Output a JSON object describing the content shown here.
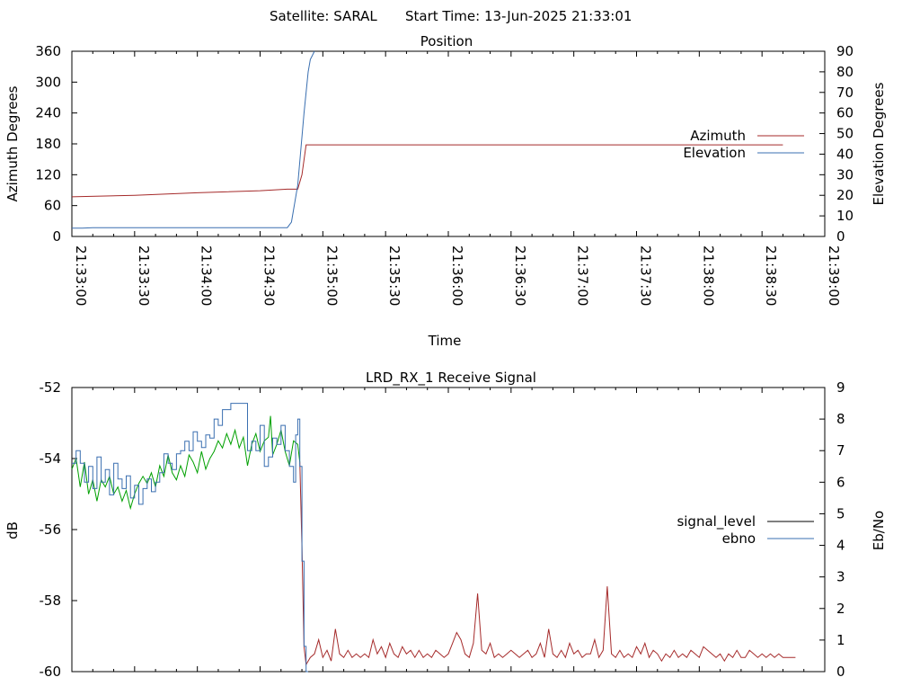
{
  "header": {
    "satellite_label": "Satellite: SARAL",
    "start_label": "Start Time: 13-Jun-2025 21:33:01"
  },
  "chart_data": [
    {
      "type": "line",
      "title": "Position",
      "xlabel": "Time",
      "ylabel": "Azimuth Degrees",
      "y2label": "Elevation Degrees",
      "xlim_seconds": [
        0,
        360
      ],
      "x_ticks": [
        "21:33:00",
        "21:33:30",
        "21:34:00",
        "21:34:30",
        "21:35:00",
        "21:35:30",
        "21:36:00",
        "21:36:30",
        "21:37:00",
        "21:37:30",
        "21:38:00",
        "21:38:30",
        "21:39:00"
      ],
      "ylim": [
        0,
        360
      ],
      "y_ticks": [
        "0",
        "60",
        "120",
        "180",
        "240",
        "300",
        "360"
      ],
      "y2lim": [
        0,
        90
      ],
      "y2_ticks": [
        "0",
        "10",
        "20",
        "30",
        "40",
        "50",
        "60",
        "70",
        "80",
        "90"
      ],
      "legend_position": "right",
      "series": [
        {
          "name": "Azimuth",
          "axis": "left",
          "color": "#a52a2a",
          "x": [
            0,
            30,
            60,
            90,
            103,
            108,
            110,
            112,
            120,
            200,
            340
          ],
          "y": [
            77,
            80,
            85,
            89,
            92,
            92,
            120,
            178,
            178,
            178,
            178
          ]
        },
        {
          "name": "Elevation",
          "axis": "right",
          "color": "#3a6fb0",
          "x": [
            0,
            5,
            10,
            60,
            90,
            103,
            105,
            108,
            111,
            113,
            114,
            115,
            116
          ],
          "y": [
            4,
            4,
            4.3,
            4.3,
            4.3,
            4.3,
            7,
            25,
            60,
            80,
            86,
            88,
            90
          ]
        }
      ]
    },
    {
      "type": "line",
      "title": "LRD_RX_1 Receive Signal",
      "ylabel": "dB",
      "y2label": "Eb/No",
      "xlim_seconds": [
        0,
        360
      ],
      "ylim": [
        -60,
        -52
      ],
      "y_ticks": [
        "-60",
        "-58",
        "-56",
        "-54",
        "-52"
      ],
      "y2lim": [
        0,
        9
      ],
      "y2_ticks": [
        "0",
        "1",
        "2",
        "3",
        "4",
        "5",
        "6",
        "7",
        "8",
        "9"
      ],
      "legend_position": "right",
      "series": [
        {
          "name": "signal_level",
          "axis": "left",
          "color": "#000000",
          "segments": [
            {
              "color": "#00a000",
              "x": [
                0,
                2,
                4,
                6,
                8,
                10,
                12,
                14,
                16,
                18,
                20,
                22,
                24,
                26,
                28,
                30,
                32,
                34,
                36,
                38,
                40,
                42,
                44,
                46,
                48,
                50,
                52,
                54,
                56,
                58,
                60,
                62,
                64,
                66,
                68,
                70,
                72,
                74,
                76,
                78,
                80,
                82,
                84,
                86,
                88,
                90,
                92,
                94,
                95,
                96,
                98,
                100,
                102,
                104,
                106,
                108,
                109
              ],
              "y": [
                -54.3,
                -54.0,
                -54.8,
                -54.1,
                -55.0,
                -54.6,
                -55.2,
                -54.6,
                -54.8,
                -54.5,
                -55.0,
                -54.8,
                -55.2,
                -54.9,
                -55.4,
                -55.0,
                -54.7,
                -54.5,
                -54.7,
                -54.4,
                -54.8,
                -54.2,
                -54.5,
                -53.9,
                -54.4,
                -54.6,
                -54.2,
                -54.5,
                -53.9,
                -54.1,
                -54.4,
                -53.8,
                -54.3,
                -54.0,
                -53.8,
                -53.5,
                -53.7,
                -53.3,
                -53.6,
                -53.2,
                -53.7,
                -53.4,
                -54.2,
                -53.6,
                -53.3,
                -53.8,
                -53.5,
                -53.4,
                -52.8,
                -53.9,
                -53.6,
                -53.2,
                -53.8,
                -54.2,
                -53.5,
                -53.6,
                -54.1
              ]
            },
            {
              "color": "#a52a2a",
              "x": [
                109,
                110,
                111,
                112,
                114,
                116,
                118,
                120,
                122,
                124,
                126,
                128,
                130,
                132,
                134,
                136,
                138,
                140,
                142,
                144,
                146,
                148,
                150,
                152,
                154,
                156,
                158,
                160,
                162,
                164,
                166,
                168,
                170,
                172,
                174,
                176,
                178,
                180,
                182,
                184,
                186,
                188,
                190,
                192,
                194,
                196,
                198,
                200,
                202,
                204,
                206,
                208,
                210,
                212,
                214,
                216,
                218,
                220,
                222,
                224,
                226,
                228,
                230,
                232,
                234,
                236,
                238,
                240,
                242,
                244,
                246,
                248,
                250,
                252,
                254,
                256,
                258,
                260,
                262,
                264,
                266,
                268,
                270,
                272,
                274,
                276,
                278,
                280,
                282,
                284,
                286,
                288,
                290,
                292,
                294,
                296,
                298,
                300,
                302,
                304,
                306,
                308,
                310,
                312,
                314,
                316,
                318,
                320,
                322,
                324,
                326,
                328,
                330,
                332,
                334,
                336,
                338,
                340,
                342,
                344,
                346
              ],
              "y": [
                -54.1,
                -56.5,
                -59.3,
                -59.8,
                -59.6,
                -59.5,
                -59.1,
                -59.6,
                -59.4,
                -59.7,
                -58.8,
                -59.5,
                -59.6,
                -59.4,
                -59.6,
                -59.5,
                -59.6,
                -59.5,
                -59.6,
                -59.1,
                -59.5,
                -59.3,
                -59.6,
                -59.2,
                -59.5,
                -59.6,
                -59.3,
                -59.5,
                -59.4,
                -59.6,
                -59.4,
                -59.6,
                -59.5,
                -59.6,
                -59.4,
                -59.5,
                -59.6,
                -59.5,
                -59.2,
                -58.9,
                -59.1,
                -59.5,
                -59.6,
                -59.2,
                -57.8,
                -59.4,
                -59.5,
                -59.2,
                -59.6,
                -59.5,
                -59.6,
                -59.5,
                -59.4,
                -59.5,
                -59.6,
                -59.5,
                -59.4,
                -59.6,
                -59.5,
                -59.2,
                -59.6,
                -58.8,
                -59.5,
                -59.6,
                -59.4,
                -59.6,
                -59.2,
                -59.5,
                -59.4,
                -59.6,
                -59.5,
                -59.5,
                -59.1,
                -59.6,
                -59.4,
                -57.6,
                -59.5,
                -59.6,
                -59.4,
                -59.6,
                -59.5,
                -59.6,
                -59.3,
                -59.5,
                -59.2,
                -59.6,
                -59.4,
                -59.5,
                -59.7,
                -59.5,
                -59.6,
                -59.4,
                -59.6,
                -59.5,
                -59.6,
                -59.4,
                -59.5,
                -59.6,
                -59.3,
                -59.4,
                -59.5,
                -59.6,
                -59.5,
                -59.7,
                -59.5,
                -59.6,
                -59.4,
                -59.6,
                -59.6,
                -59.4,
                -59.5,
                -59.6,
                -59.5,
                -59.6,
                -59.5,
                -59.6,
                -59.5,
                -59.6,
                -59.6,
                -59.6,
                -59.6
              ]
            }
          ]
        },
        {
          "name": "ebno",
          "axis": "right",
          "color": "#3a6fb0",
          "steps_x": [
            0,
            2,
            4,
            6,
            8,
            10,
            12,
            14,
            16,
            18,
            20,
            22,
            24,
            26,
            28,
            30,
            32,
            34,
            36,
            38,
            40,
            42,
            44,
            46,
            48,
            50,
            52,
            54,
            56,
            58,
            60,
            62,
            64,
            66,
            68,
            70,
            72,
            74,
            76,
            78,
            80,
            82,
            84,
            86,
            88,
            90,
            92,
            94,
            96,
            98,
            100,
            102,
            104,
            106,
            107,
            108,
            109,
            110,
            111,
            112,
            113
          ],
          "steps_y": [
            6.6,
            7.0,
            6.6,
            6.0,
            6.5,
            5.8,
            6.8,
            6.0,
            6.4,
            5.6,
            6.6,
            6.1,
            5.8,
            6.2,
            5.5,
            5.9,
            5.3,
            5.8,
            6.1,
            5.7,
            6.0,
            6.3,
            6.9,
            6.6,
            6.4,
            6.9,
            7.0,
            7.3,
            7.0,
            7.6,
            7.3,
            7.1,
            7.5,
            7.4,
            8.0,
            7.8,
            8.3,
            8.3,
            8.5,
            8.5,
            8.5,
            8.5,
            7.0,
            7.3,
            7.0,
            7.8,
            6.5,
            6.8,
            7.4,
            7.2,
            7.8,
            7.0,
            6.5,
            6.0,
            7.5,
            8.0,
            6.5,
            3.5,
            0.8,
            0,
            0
          ]
        }
      ]
    }
  ]
}
